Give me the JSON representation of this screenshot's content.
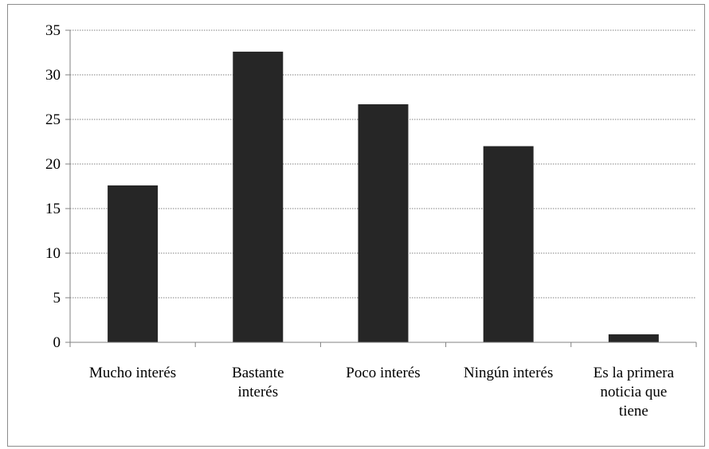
{
  "chart_data": {
    "type": "bar",
    "title": "",
    "xlabel": "",
    "ylabel": "",
    "categories": [
      [
        "Mucho interés"
      ],
      [
        "Bastante",
        "interés"
      ],
      [
        "Poco interés"
      ],
      [
        "Ningún interés"
      ],
      [
        "Es la primera",
        "noticia que",
        "tiene"
      ]
    ],
    "values": [
      17.6,
      32.6,
      26.7,
      22.0,
      0.9
    ],
    "ylim": [
      0,
      35
    ],
    "yticks": [
      0,
      5,
      10,
      15,
      20,
      25,
      30,
      35
    ],
    "grid": "horizontal-dotted",
    "legend": "none",
    "colors": {
      "bar": "#262626",
      "axis": "#808080",
      "grid": "#808080",
      "text": "#000000",
      "frame": "#8c8c8c"
    }
  }
}
